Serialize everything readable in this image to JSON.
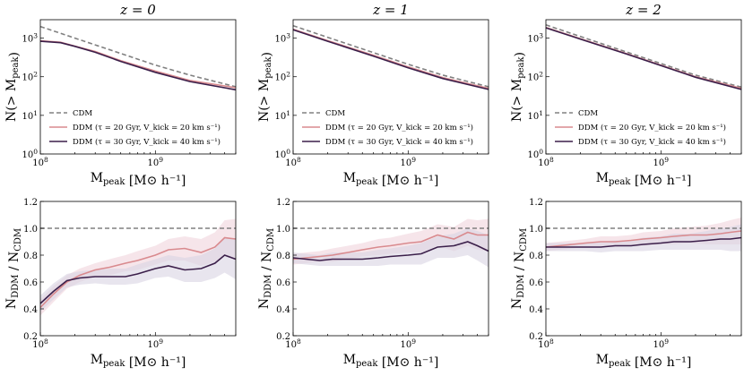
{
  "colors": {
    "cdm": "#808080",
    "ddm1": "#d98a8e",
    "ddm2": "#3b1f4a",
    "band1": "#f0d4dc",
    "band2": "#d8d3e2"
  },
  "chart_data": [
    {
      "type": "line",
      "title": "z = 0",
      "xlabel": "M_peak [M⊙ h⁻¹]",
      "ylabel": "N(> M_peak)",
      "xscale": "log",
      "yscale": "log",
      "xlim": [
        100000000.0,
        5000000000.0
      ],
      "ylim": [
        1,
        3000
      ],
      "xticklabels": [
        "10^8",
        "10^9"
      ],
      "yticklabels": [
        "10^0",
        "10^1",
        "10^2",
        "10^3"
      ],
      "legend": [
        "CDM",
        "DDM (τ = 20 Gyr, V_kick = 20 km s⁻¹)",
        "DDM (τ = 30 Gyr, V_kick = 40 km s⁻¹)"
      ],
      "series": [
        {
          "name": "CDM",
          "style": "dashed",
          "x": [
            100000000.0,
            200000000.0,
            500000000.0,
            1000000000.0,
            2000000000.0,
            5000000000.0
          ],
          "values": [
            2000,
            1000,
            400,
            200,
            110,
            55
          ]
        },
        {
          "name": "DDM (τ = 20 Gyr, V_kick = 20 km s⁻¹)",
          "x": [
            100000000.0,
            150000000.0,
            200000000.0,
            300000000.0,
            500000000.0,
            1000000000.0,
            2000000000.0,
            5000000000.0
          ],
          "values": [
            850,
            780,
            620,
            450,
            260,
            140,
            80,
            52
          ]
        },
        {
          "name": "DDM (τ = 30 Gyr, V_kick = 40 km s⁻¹)",
          "x": [
            100000000.0,
            150000000.0,
            200000000.0,
            300000000.0,
            500000000.0,
            1000000000.0,
            2000000000.0,
            5000000000.0
          ],
          "values": [
            830,
            760,
            610,
            430,
            250,
            130,
            75,
            46
          ]
        }
      ]
    },
    {
      "type": "line",
      "title": "z = 1",
      "xlabel": "M_peak [M⊙ h⁻¹]",
      "ylabel": "N(> M_peak)",
      "xscale": "log",
      "yscale": "log",
      "xlim": [
        100000000.0,
        5000000000.0
      ],
      "ylim": [
        1,
        3000
      ],
      "xticklabels": [
        "10^8",
        "10^9"
      ],
      "yticklabels": [
        "10^0",
        "10^1",
        "10^2",
        "10^3"
      ],
      "legend": [
        "CDM",
        "DDM (τ = 20 Gyr, V_kick = 20 km s⁻¹)",
        "DDM (τ = 30 Gyr, V_kick = 40 km s⁻¹)"
      ],
      "series": [
        {
          "name": "CDM",
          "style": "dashed",
          "x": [
            100000000.0,
            200000000.0,
            500000000.0,
            1000000000.0,
            2000000000.0,
            5000000000.0
          ],
          "values": [
            2100,
            1050,
            420,
            210,
            110,
            55
          ]
        },
        {
          "name": "DDM (τ = 20 Gyr, V_kick = 20 km s⁻¹)",
          "x": [
            100000000.0,
            200000000.0,
            500000000.0,
            1000000000.0,
            2000000000.0,
            5000000000.0
          ],
          "values": [
            1700,
            860,
            360,
            180,
            95,
            50
          ]
        },
        {
          "name": "DDM (τ = 30 Gyr, V_kick = 40 km s⁻¹)",
          "x": [
            100000000.0,
            200000000.0,
            500000000.0,
            1000000000.0,
            2000000000.0,
            5000000000.0
          ],
          "values": [
            1650,
            830,
            340,
            170,
            90,
            47
          ]
        }
      ]
    },
    {
      "type": "line",
      "title": "z = 2",
      "xlabel": "M_peak [M⊙ h⁻¹]",
      "ylabel": "N(> M_peak)",
      "xscale": "log",
      "yscale": "log",
      "xlim": [
        100000000.0,
        5000000000.0
      ],
      "ylim": [
        1,
        3000
      ],
      "xticklabels": [
        "10^8",
        "10^9"
      ],
      "yticklabels": [
        "10^0",
        "10^1",
        "10^2",
        "10^3"
      ],
      "legend": [
        "CDM",
        "DDM (τ = 20 Gyr, V_kick = 20 km s⁻¹)",
        "DDM (τ = 30 Gyr, V_kick = 40 km s⁻¹)"
      ],
      "series": [
        {
          "name": "CDM",
          "style": "dashed",
          "x": [
            100000000.0,
            200000000.0,
            500000000.0,
            1000000000.0,
            2000000000.0,
            5000000000.0
          ],
          "values": [
            2200,
            1100,
            440,
            220,
            110,
            54
          ]
        },
        {
          "name": "DDM (τ = 20 Gyr, V_kick = 20 km s⁻¹)",
          "x": [
            100000000.0,
            200000000.0,
            500000000.0,
            1000000000.0,
            2000000000.0,
            5000000000.0
          ],
          "values": [
            1900,
            960,
            400,
            200,
            100,
            50
          ]
        },
        {
          "name": "DDM (τ = 30 Gyr, V_kick = 40 km s⁻¹)",
          "x": [
            100000000.0,
            200000000.0,
            500000000.0,
            1000000000.0,
            2000000000.0,
            5000000000.0
          ],
          "values": [
            1850,
            940,
            390,
            195,
            97,
            47
          ]
        }
      ]
    },
    {
      "type": "line",
      "xlabel": "M_peak [M⊙ h⁻¹]",
      "ylabel": "N_DDM / N_CDM",
      "xscale": "log",
      "xlim": [
        100000000.0,
        5000000000.0
      ],
      "ylim": [
        0.2,
        1.2
      ],
      "xticklabels": [
        "10^8",
        "10^9"
      ],
      "yticklabels": [
        "0.2",
        "0.4",
        "0.6",
        "0.8",
        "1.0",
        "1.2"
      ],
      "series": [
        {
          "name": "CDM",
          "style": "dashed",
          "x": [
            100000000.0,
            5000000000.0
          ],
          "values": [
            1.0,
            1.0
          ]
        },
        {
          "name": "DDM (τ = 20 Gyr, V_kick = 20 km s⁻¹)",
          "x": [
            100000000.0,
            130000000.0,
            170000000.0,
            220000000.0,
            300000000.0,
            400000000.0,
            550000000.0,
            700000000.0,
            1000000000.0,
            1300000000.0,
            1800000000.0,
            2500000000.0,
            3300000000.0,
            4000000000.0,
            5000000000.0
          ],
          "values": [
            0.41,
            0.51,
            0.6,
            0.65,
            0.69,
            0.71,
            0.74,
            0.76,
            0.8,
            0.84,
            0.85,
            0.82,
            0.86,
            0.93,
            0.92
          ],
          "band": [
            0.06,
            0.06,
            0.05,
            0.05,
            0.05,
            0.06,
            0.06,
            0.07,
            0.07,
            0.08,
            0.09,
            0.1,
            0.11,
            0.13,
            0.15
          ]
        },
        {
          "name": "DDM (τ = 30 Gyr, V_kick = 40 km s⁻¹)",
          "x": [
            100000000.0,
            130000000.0,
            170000000.0,
            220000000.0,
            300000000.0,
            400000000.0,
            550000000.0,
            700000000.0,
            1000000000.0,
            1300000000.0,
            1800000000.0,
            2500000000.0,
            3300000000.0,
            4000000000.0,
            5000000000.0
          ],
          "values": [
            0.44,
            0.53,
            0.61,
            0.63,
            0.64,
            0.64,
            0.64,
            0.66,
            0.7,
            0.72,
            0.69,
            0.7,
            0.74,
            0.8,
            0.77
          ],
          "band": [
            0.06,
            0.06,
            0.05,
            0.05,
            0.05,
            0.06,
            0.06,
            0.07,
            0.07,
            0.08,
            0.09,
            0.1,
            0.11,
            0.13,
            0.15
          ]
        }
      ]
    },
    {
      "type": "line",
      "xlabel": "M_peak [M⊙ h⁻¹]",
      "ylabel": "N_DDM / N_CDM",
      "xscale": "log",
      "xlim": [
        100000000.0,
        5000000000.0
      ],
      "ylim": [
        0.2,
        1.2
      ],
      "xticklabels": [
        "10^8",
        "10^9"
      ],
      "yticklabels": [
        "0.2",
        "0.4",
        "0.6",
        "0.8",
        "1.0",
        "1.2"
      ],
      "series": [
        {
          "name": "CDM",
          "style": "dashed",
          "x": [
            100000000.0,
            5000000000.0
          ],
          "values": [
            1.0,
            1.0
          ]
        },
        {
          "name": "DDM (τ = 20 Gyr, V_kick = 20 km s⁻¹)",
          "x": [
            100000000.0,
            130000000.0,
            170000000.0,
            220000000.0,
            300000000.0,
            400000000.0,
            550000000.0,
            700000000.0,
            1000000000.0,
            1300000000.0,
            1800000000.0,
            2500000000.0,
            3300000000.0,
            4000000000.0,
            5000000000.0
          ],
          "values": [
            0.77,
            0.78,
            0.79,
            0.8,
            0.82,
            0.84,
            0.86,
            0.87,
            0.89,
            0.9,
            0.95,
            0.92,
            0.97,
            0.95,
            0.95
          ],
          "band": [
            0.04,
            0.04,
            0.04,
            0.05,
            0.05,
            0.05,
            0.06,
            0.06,
            0.07,
            0.08,
            0.08,
            0.09,
            0.1,
            0.11,
            0.12
          ]
        },
        {
          "name": "DDM (τ = 30 Gyr, V_kick = 40 km s⁻¹)",
          "x": [
            100000000.0,
            130000000.0,
            170000000.0,
            220000000.0,
            300000000.0,
            400000000.0,
            550000000.0,
            700000000.0,
            1000000000.0,
            1300000000.0,
            1800000000.0,
            2500000000.0,
            3300000000.0,
            4000000000.0,
            5000000000.0
          ],
          "values": [
            0.78,
            0.77,
            0.76,
            0.77,
            0.77,
            0.77,
            0.78,
            0.79,
            0.8,
            0.81,
            0.86,
            0.87,
            0.9,
            0.87,
            0.83
          ],
          "band": [
            0.04,
            0.04,
            0.04,
            0.05,
            0.05,
            0.05,
            0.06,
            0.06,
            0.07,
            0.08,
            0.08,
            0.09,
            0.1,
            0.11,
            0.12
          ]
        }
      ]
    },
    {
      "type": "line",
      "xlabel": "M_peak [M⊙ h⁻¹]",
      "ylabel": "N_DDM / N_CDM",
      "xscale": "log",
      "xlim": [
        100000000.0,
        5000000000.0
      ],
      "ylim": [
        0.2,
        1.2
      ],
      "xticklabels": [
        "10^8",
        "10^9"
      ],
      "yticklabels": [
        "0.2",
        "0.4",
        "0.6",
        "0.8",
        "1.0",
        "1.2"
      ],
      "series": [
        {
          "name": "CDM",
          "style": "dashed",
          "x": [
            100000000.0,
            5000000000.0
          ],
          "values": [
            1.0,
            1.0
          ]
        },
        {
          "name": "DDM (τ = 20 Gyr, V_kick = 20 km s⁻¹)",
          "x": [
            100000000.0,
            130000000.0,
            170000000.0,
            220000000.0,
            300000000.0,
            400000000.0,
            550000000.0,
            700000000.0,
            1000000000.0,
            1300000000.0,
            1800000000.0,
            2500000000.0,
            3300000000.0,
            4000000000.0,
            5000000000.0
          ],
          "values": [
            0.86,
            0.87,
            0.88,
            0.89,
            0.9,
            0.9,
            0.91,
            0.92,
            0.93,
            0.94,
            0.95,
            0.95,
            0.96,
            0.97,
            0.98
          ],
          "band": [
            0.03,
            0.03,
            0.03,
            0.03,
            0.04,
            0.04,
            0.04,
            0.05,
            0.05,
            0.06,
            0.06,
            0.07,
            0.08,
            0.09,
            0.1
          ]
        },
        {
          "name": "DDM (τ = 30 Gyr, V_kick = 40 km s⁻¹)",
          "x": [
            100000000.0,
            130000000.0,
            170000000.0,
            220000000.0,
            300000000.0,
            400000000.0,
            550000000.0,
            700000000.0,
            1000000000.0,
            1300000000.0,
            1800000000.0,
            2500000000.0,
            3300000000.0,
            4000000000.0,
            5000000000.0
          ],
          "values": [
            0.86,
            0.86,
            0.86,
            0.86,
            0.86,
            0.87,
            0.87,
            0.88,
            0.89,
            0.9,
            0.9,
            0.91,
            0.92,
            0.92,
            0.93
          ],
          "band": [
            0.03,
            0.03,
            0.03,
            0.03,
            0.04,
            0.04,
            0.04,
            0.05,
            0.05,
            0.06,
            0.06,
            0.07,
            0.08,
            0.09,
            0.1
          ]
        }
      ]
    }
  ]
}
